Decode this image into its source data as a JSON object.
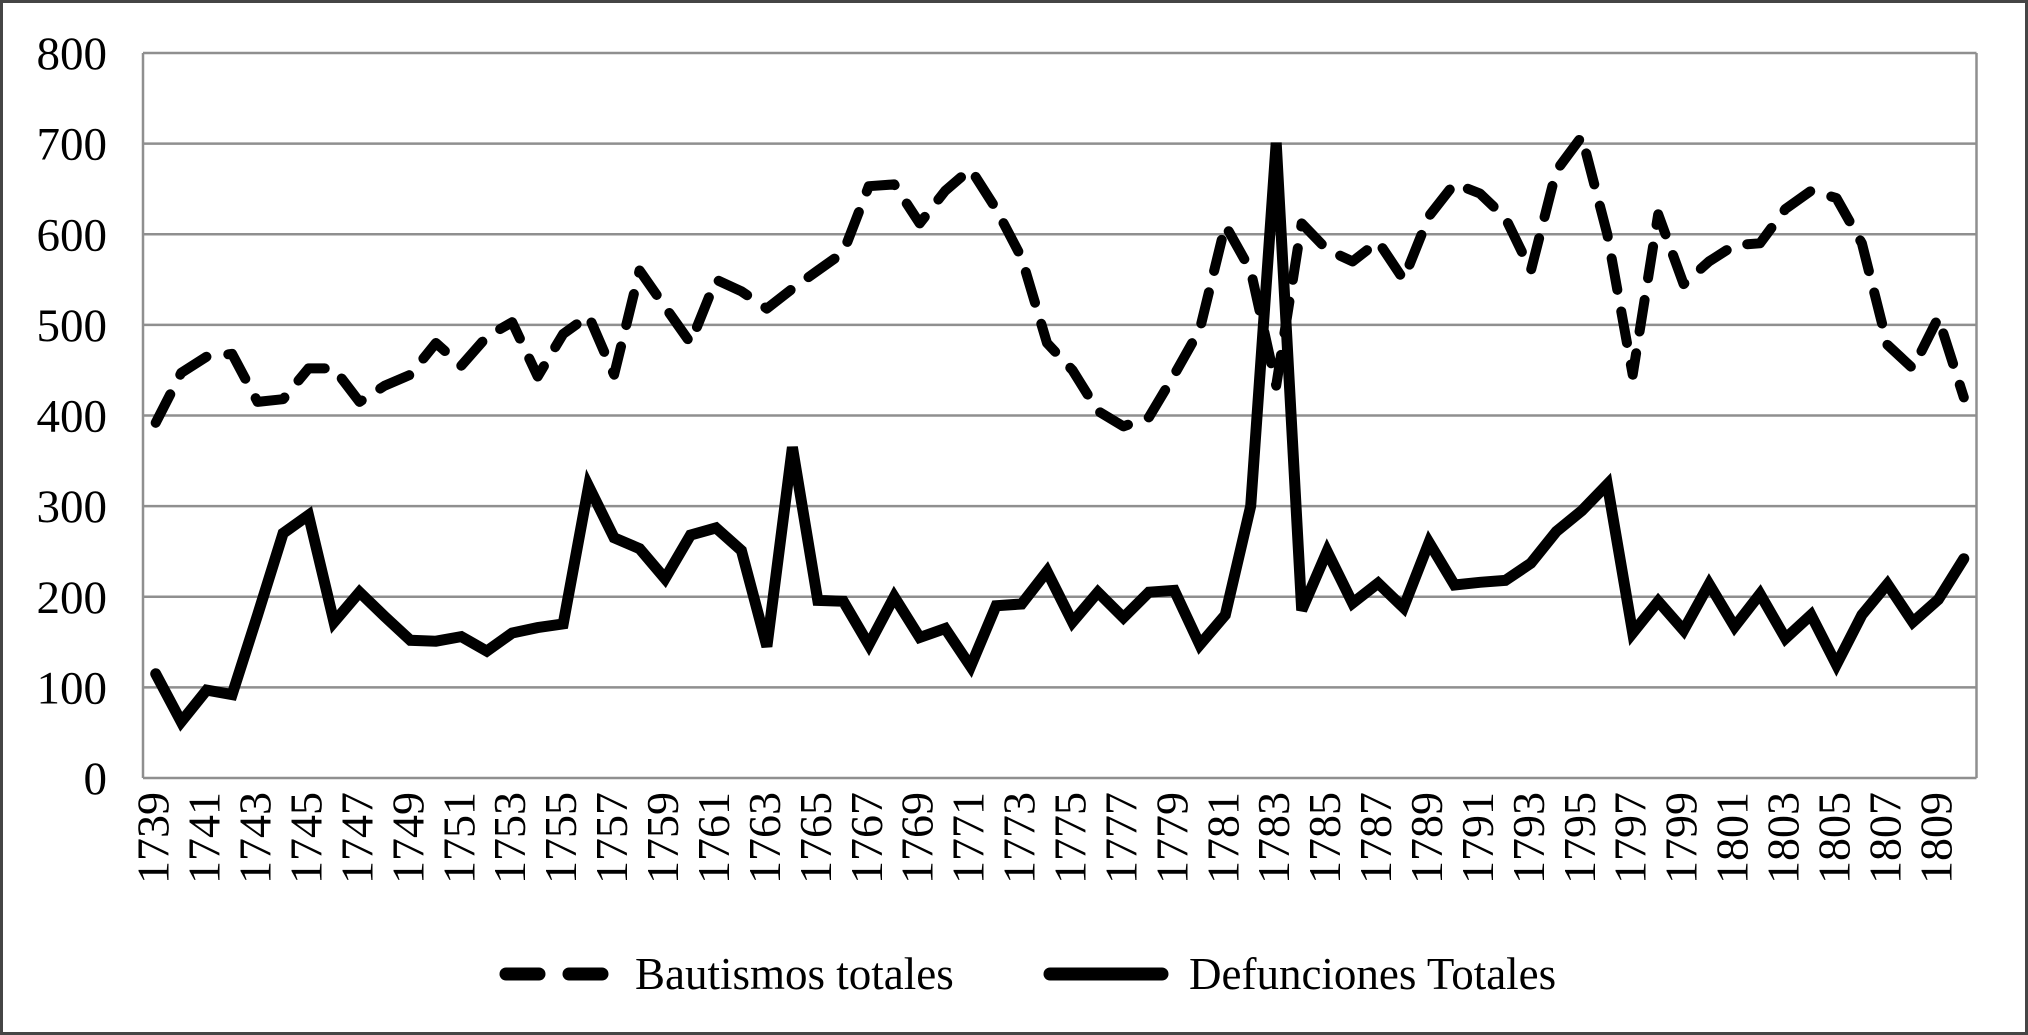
{
  "chart_data": {
    "type": "line",
    "title": "",
    "xlabel": "",
    "ylabel": "",
    "ylim": [
      0,
      800
    ],
    "y_ticks": [
      0,
      100,
      200,
      300,
      400,
      500,
      600,
      700,
      800
    ],
    "grid": "horizontal",
    "legend_position": "bottom",
    "x": [
      1739,
      1740,
      1741,
      1742,
      1743,
      1744,
      1745,
      1746,
      1747,
      1748,
      1749,
      1750,
      1751,
      1752,
      1753,
      1754,
      1755,
      1756,
      1757,
      1758,
      1759,
      1760,
      1761,
      1762,
      1763,
      1764,
      1765,
      1766,
      1767,
      1768,
      1769,
      1770,
      1771,
      1772,
      1773,
      1774,
      1775,
      1776,
      1777,
      1778,
      1779,
      1780,
      1781,
      1782,
      1783,
      1784,
      1785,
      1786,
      1787,
      1788,
      1789,
      1790,
      1791,
      1792,
      1793,
      1794,
      1795,
      1796,
      1797,
      1798,
      1799,
      1800,
      1801,
      1802,
      1803,
      1804,
      1805,
      1806,
      1807,
      1808,
      1809,
      1810
    ],
    "x_tick_labels": [
      "1739",
      "1741",
      "1743",
      "1745",
      "1747",
      "1749",
      "1751",
      "1753",
      "1755",
      "1757",
      "1759",
      "1761",
      "1763",
      "1765",
      "1767",
      "1769",
      "1771",
      "1773",
      "1775",
      "1777",
      "1779",
      "1781",
      "1783",
      "1785",
      "1787",
      "1789",
      "1791",
      "1793",
      "1795",
      "1797",
      "1799",
      "1801",
      "1803",
      "1805",
      "1807",
      "1809"
    ],
    "series": [
      {
        "name": "Bautismos totales",
        "style": "dashed",
        "color": "#000000",
        "values": [
          392,
          447,
          465,
          468,
          415,
          418,
          452,
          452,
          415,
          433,
          445,
          480,
          455,
          487,
          503,
          443,
          490,
          510,
          445,
          560,
          520,
          480,
          550,
          537,
          518,
          540,
          560,
          580,
          653,
          655,
          612,
          648,
          672,
          628,
          574,
          480,
          450,
          405,
          388,
          398,
          445,
          495,
          610,
          560,
          433,
          612,
          583,
          570,
          592,
          550,
          620,
          656,
          645,
          618,
          560,
          670,
          708,
          600,
          445,
          622,
          545,
          570,
          588,
          590,
          628,
          648,
          640,
          590,
          478,
          452,
          508,
          420
        ]
      },
      {
        "name": "Defunciones Totales",
        "style": "solid",
        "color": "#000000",
        "values": [
          115,
          62,
          97,
          92,
          180,
          270,
          290,
          172,
          205,
          178,
          152,
          151,
          156,
          140,
          160,
          166,
          170,
          322,
          265,
          253,
          220,
          268,
          276,
          251,
          145,
          365,
          196,
          195,
          147,
          200,
          155,
          165,
          123,
          190,
          192,
          228,
          172,
          205,
          177,
          205,
          207,
          147,
          180,
          300,
          701,
          185,
          250,
          193,
          215,
          188,
          260,
          213,
          216,
          218,
          237,
          272,
          295,
          324,
          160,
          195,
          163,
          214,
          167,
          203,
          154,
          180,
          125,
          180,
          214,
          172,
          197,
          242
        ]
      }
    ]
  },
  "legend": {
    "items": [
      {
        "label": "Bautismos totales",
        "swatch": "dashed"
      },
      {
        "label": "Defunciones Totales",
        "swatch": "solid"
      }
    ]
  },
  "colors": {
    "line": "#000000",
    "grid": "#8f8f8f",
    "axis": "#8f8f8f",
    "background": "#ffffff",
    "text": "#000000"
  }
}
